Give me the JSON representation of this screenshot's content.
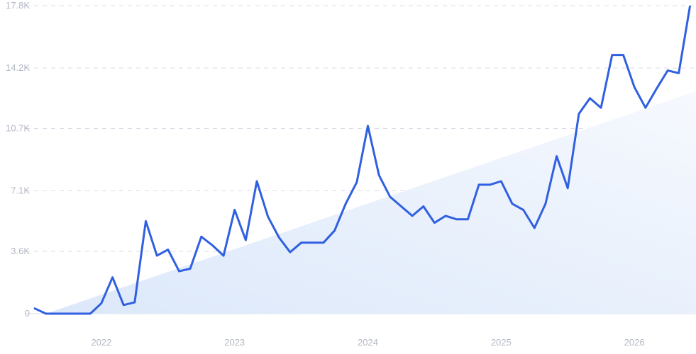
{
  "chart_data": {
    "type": "line",
    "title": "",
    "xlabel": "",
    "ylabel": "",
    "y_tick_labels": [
      "0",
      "3.6K",
      "7.1K",
      "10.7K",
      "14.2K",
      "17.8K"
    ],
    "y_ticks": [
      0,
      3600,
      7100,
      10700,
      14200,
      17800
    ],
    "ylim": [
      0,
      17800
    ],
    "x_tick_labels": [
      "2022",
      "2023",
      "2024",
      "2025",
      "2026"
    ],
    "x_ticks": [
      "2022-01",
      "2023-01",
      "2024-01",
      "2025-01",
      "2026-01"
    ],
    "x_range": [
      "2021-07",
      "2026-06"
    ],
    "grid": true,
    "legend": "none",
    "colors": {
      "line": "#3060e0",
      "trend_fill_start": "#dce8fa",
      "trend_fill_end": "#f6f9fe",
      "grid": "#d9dde8",
      "tick_text": "#b3b8c4"
    },
    "series": [
      {
        "x": [
          "2021-07",
          "2021-08",
          "2021-09",
          "2021-10",
          "2021-11",
          "2021-12",
          "2022-01",
          "2022-02",
          "2022-03",
          "2022-04",
          "2022-05",
          "2022-06",
          "2022-07",
          "2022-08",
          "2022-09",
          "2022-10",
          "2022-11",
          "2022-12",
          "2023-01",
          "2023-02",
          "2023-03",
          "2023-04",
          "2023-05",
          "2023-06",
          "2023-07",
          "2023-08",
          "2023-09",
          "2023-10",
          "2023-11",
          "2023-12",
          "2024-01",
          "2024-02",
          "2024-03",
          "2024-04",
          "2024-05",
          "2024-06",
          "2024-07",
          "2024-08",
          "2024-09",
          "2024-10",
          "2024-11",
          "2024-12",
          "2025-01",
          "2025-02",
          "2025-03",
          "2025-04",
          "2025-05",
          "2025-06",
          "2025-07",
          "2025-08",
          "2025-09",
          "2025-10",
          "2025-11",
          "2025-12",
          "2026-01",
          "2026-02",
          "2026-03",
          "2026-04",
          "2026-05",
          "2026-06"
        ],
        "values": [
          300,
          0,
          0,
          0,
          0,
          0,
          600,
          2100,
          500,
          650,
          5350,
          3350,
          3700,
          2450,
          2600,
          4450,
          3950,
          3350,
          6000,
          4250,
          7650,
          5600,
          4400,
          3550,
          4100,
          4100,
          4100,
          4800,
          6350,
          7600,
          10850,
          8000,
          6750,
          6200,
          5650,
          6200,
          5250,
          5650,
          5450,
          5450,
          7450,
          7450,
          7650,
          6350,
          6000,
          4950,
          6350,
          9100,
          7250,
          11550,
          12450,
          11900,
          14950,
          14950,
          13100,
          11900,
          13000,
          14050,
          13900,
          17750
        ]
      }
    ],
    "trend": {
      "start": [
        "2021-08",
        0
      ],
      "end": [
        "2026-07",
        12950
      ]
    }
  }
}
